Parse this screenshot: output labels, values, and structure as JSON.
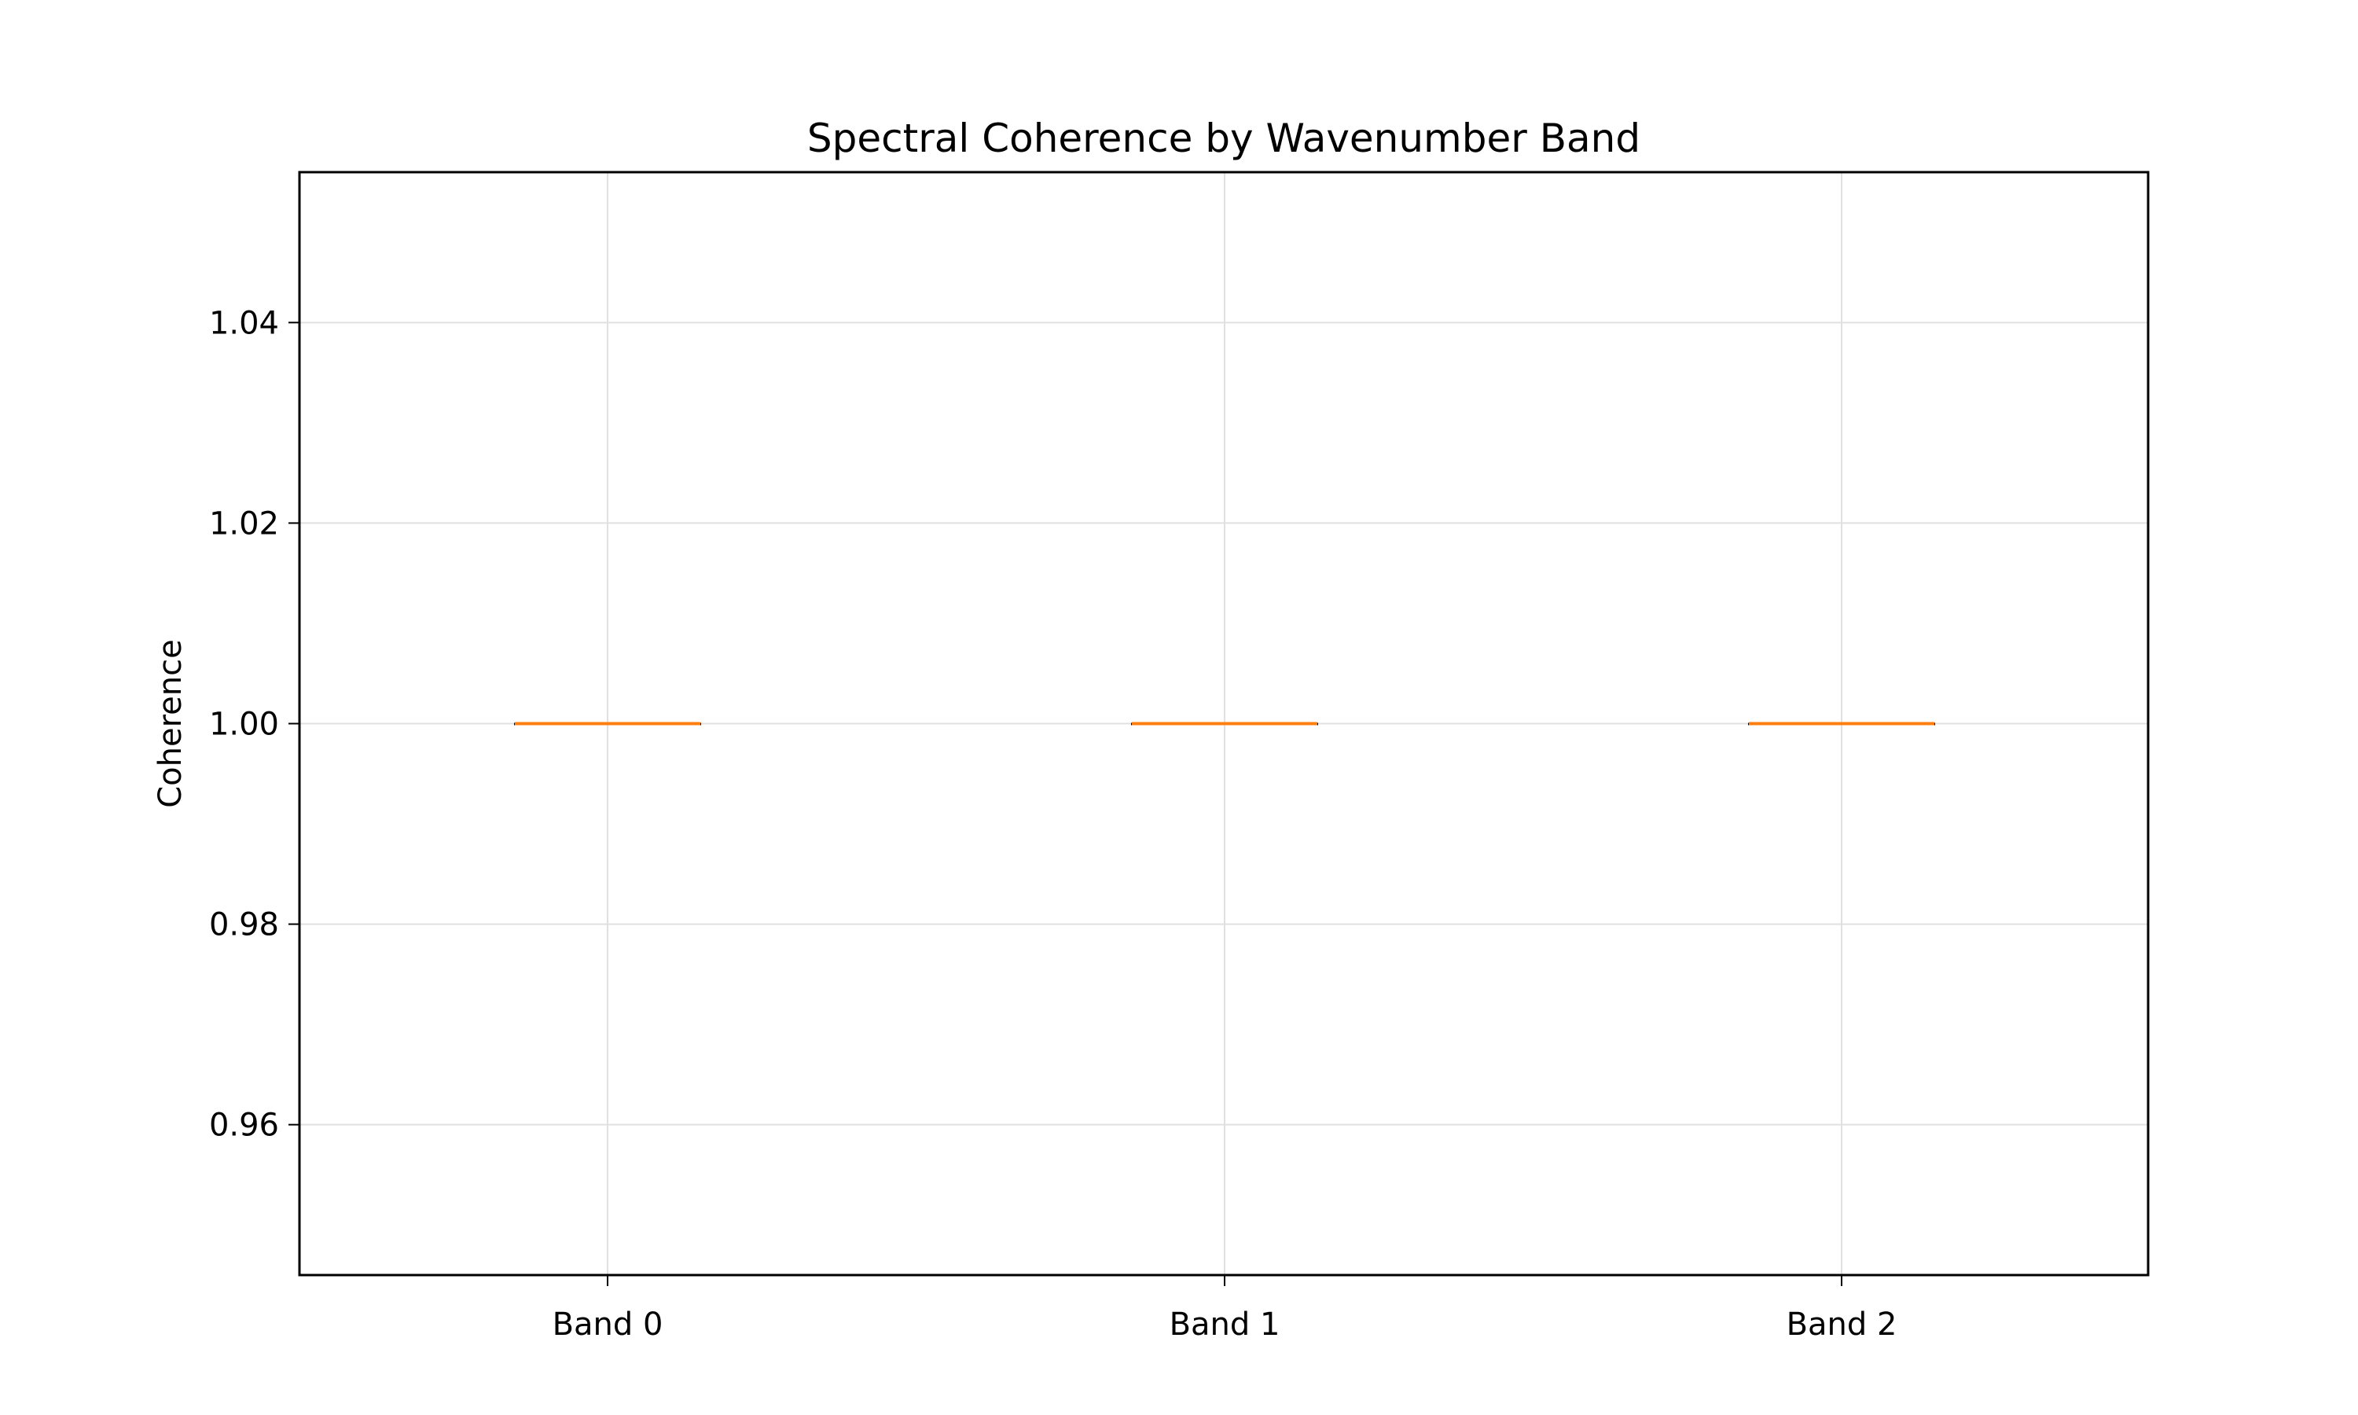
{
  "chart_data": {
    "type": "box",
    "title": "Spectral Coherence by Wavenumber Band",
    "xlabel": "",
    "ylabel": "Coherence",
    "categories": [
      "Band 0",
      "Band 1",
      "Band 2"
    ],
    "boxes": [
      {
        "category": "Band 0",
        "whislo": 1.0,
        "q1": 1.0,
        "median": 1.0,
        "q3": 1.0,
        "whishi": 1.0
      },
      {
        "category": "Band 1",
        "whislo": 1.0,
        "q1": 1.0,
        "median": 1.0,
        "q3": 1.0,
        "whishi": 1.0
      },
      {
        "category": "Band 2",
        "whislo": 1.0,
        "q1": 1.0,
        "median": 1.0,
        "q3": 1.0,
        "whishi": 1.0
      }
    ],
    "ylim": [
      0.945,
      1.055
    ],
    "yticks": [
      0.96,
      0.98,
      1.0,
      1.02,
      1.04
    ],
    "ytick_labels": [
      "0.96",
      "0.98",
      "1.00",
      "1.02",
      "1.04"
    ],
    "grid": true,
    "legend": "none",
    "colors": {
      "median": "#ff7f0e",
      "box": "#000000",
      "grid": "#e0e0e0",
      "axes": "#000000"
    }
  }
}
